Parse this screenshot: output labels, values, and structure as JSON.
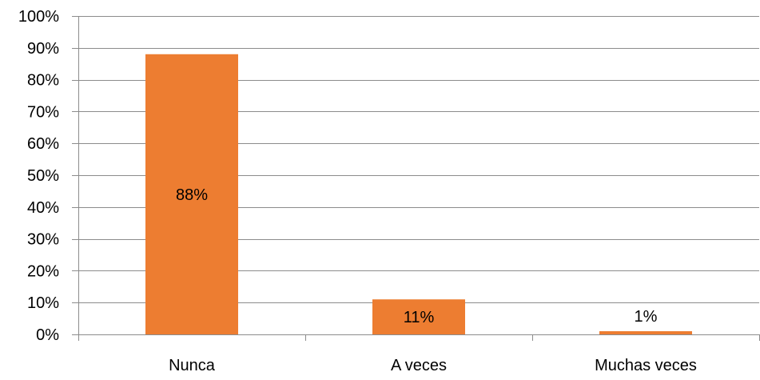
{
  "chart_data": {
    "type": "bar",
    "categories": [
      "Nunca",
      "A veces",
      "Muchas veces"
    ],
    "values": [
      88,
      11,
      1
    ],
    "data_labels": [
      "88%",
      "11%",
      "1%"
    ],
    "title": "",
    "xlabel": "",
    "ylabel": "",
    "ylim": [
      0,
      100
    ],
    "y_ticks": [
      0,
      10,
      20,
      30,
      40,
      50,
      60,
      70,
      80,
      90,
      100
    ],
    "y_tick_labels": [
      "0%",
      "10%",
      "20%",
      "30%",
      "40%",
      "50%",
      "60%",
      "70%",
      "80%",
      "90%",
      "100%"
    ],
    "grid": true,
    "legend": "none",
    "bar_color": "#ED7D31",
    "gridline_color": "#8C8C8C"
  }
}
